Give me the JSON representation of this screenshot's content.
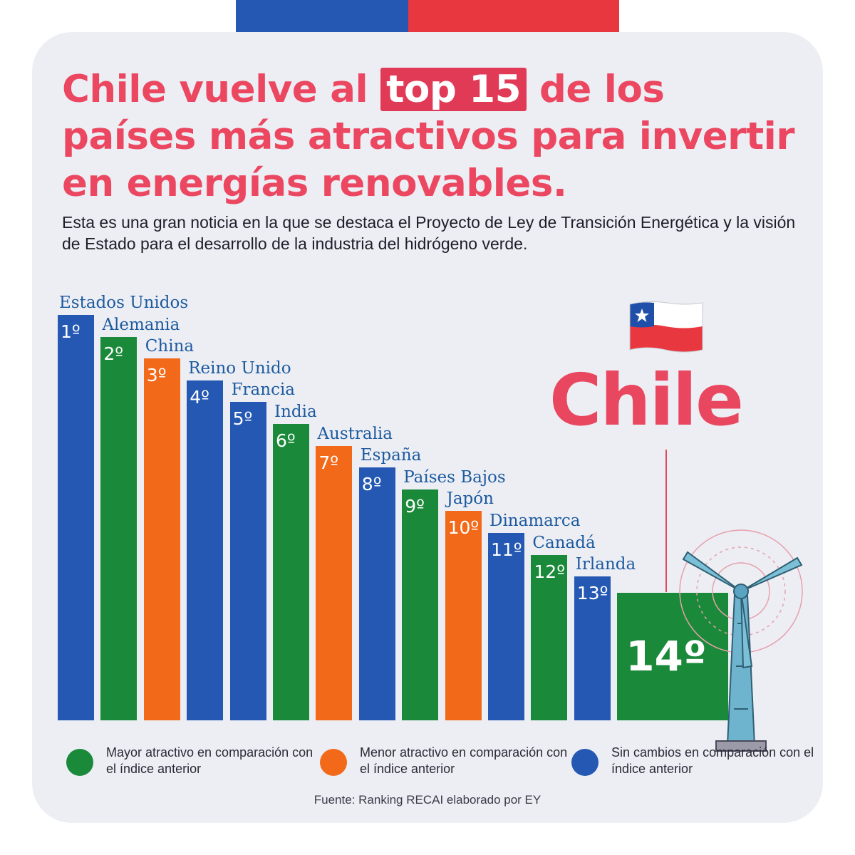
{
  "title": {
    "before": "Chile vuelve al ",
    "highlight": "top 15",
    "after": " de los países más atractivos para invertir en energías renovables."
  },
  "subtitle": "Esta es una gran noticia en la que se destaca el Proyecto de Ley de Transición Energética y la visión de Estado para el desarrollo de la industria del hidrógeno verde.",
  "colors": {
    "mayor": "#1a8a3a",
    "menor": "#f26a19",
    "sin_cambios": "#2458b3",
    "accent": "#ec4760"
  },
  "chart_data": {
    "type": "bar",
    "categories": [
      "Estados Unidos",
      "Alemania",
      "China",
      "Reino Unido",
      "Francia",
      "India",
      "Australia",
      "España",
      "Países Bajos",
      "Japón",
      "Dinamarca",
      "Canadá",
      "Irlanda",
      "Chile"
    ],
    "values": [
      1,
      2,
      3,
      4,
      5,
      6,
      7,
      8,
      9,
      10,
      11,
      12,
      13,
      14
    ],
    "rank_labels": [
      "1º",
      "2º",
      "3º",
      "4º",
      "5º",
      "6º",
      "7º",
      "8º",
      "9º",
      "10º",
      "11º",
      "12º",
      "13º",
      "14º"
    ],
    "status": [
      "sin_cambios",
      "mayor",
      "menor",
      "sin_cambios",
      "sin_cambios",
      "mayor",
      "menor",
      "sin_cambios",
      "mayor",
      "menor",
      "sin_cambios",
      "mayor",
      "sin_cambios",
      "mayor"
    ],
    "highlight": "Chile",
    "title": "",
    "xlabel": "",
    "ylabel": ""
  },
  "chile_label": "Chile",
  "flag_icon": "chile-flag-icon",
  "turbine_icon": "wind-turbine-icon",
  "legend": [
    {
      "key": "mayor",
      "text": "Mayor atractivo en comparación con el índice anterior"
    },
    {
      "key": "menor",
      "text": "Menor atractivo en comparación con el índice anterior"
    },
    {
      "key": "sin_cambios",
      "text": "Sin cambios en comparación con el índice anterior"
    }
  ],
  "source": "Fuente: Ranking RECAI elaborado por EY"
}
